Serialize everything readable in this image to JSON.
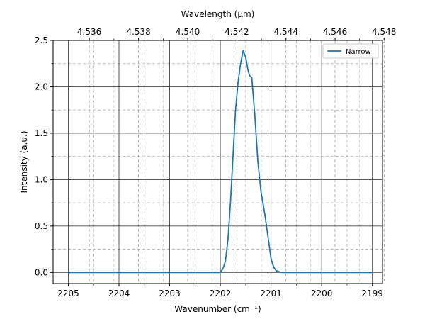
{
  "chart_data": {
    "type": "line",
    "xlabel": "Wavenumber (cm⁻¹)",
    "ylabel": "Intensity (a.u.)",
    "secondary_xlabel": "Wavelength (µm)",
    "xlim": [
      2205.3,
      2198.8
    ],
    "ylim": [
      -0.12,
      2.5
    ],
    "x_inverted": true,
    "x_ticks": [
      2205,
      2204,
      2203,
      2202,
      2201,
      2200,
      2199
    ],
    "x_tick_labels": [
      "2205",
      "2204",
      "2203",
      "2202",
      "2201",
      "2200",
      "2199"
    ],
    "y_ticks": [
      0.0,
      0.5,
      1.0,
      1.5,
      2.0,
      2.5
    ],
    "y_tick_labels": [
      "0.0",
      "0.5",
      "1.0",
      "1.5",
      "2.0",
      "2.5"
    ],
    "secondary_x_ticks": [
      4.536,
      4.538,
      4.54,
      4.542,
      4.544,
      4.546,
      4.548
    ],
    "secondary_x_tick_labels": [
      "4.536",
      "4.538",
      "4.540",
      "4.542",
      "4.544",
      "4.546",
      "4.548"
    ],
    "grid": true,
    "minor_grid": true,
    "legend_position": "top-right",
    "series": [
      {
        "name": "Narrow",
        "color": "#1f77b4",
        "x": [
          2205.0,
          2202.2,
          2202.0,
          2201.95,
          2201.9,
          2201.85,
          2201.8,
          2201.75,
          2201.7,
          2201.65,
          2201.6,
          2201.55,
          2201.5,
          2201.45,
          2201.42,
          2201.38,
          2201.32,
          2201.26,
          2201.2,
          2201.12,
          2201.05,
          2201.0,
          2200.95,
          2200.9,
          2200.8,
          2200.5,
          2199.0
        ],
        "y": [
          0.0,
          0.0,
          0.0,
          0.04,
          0.12,
          0.35,
          0.75,
          1.25,
          1.75,
          2.05,
          2.25,
          2.39,
          2.32,
          2.17,
          2.12,
          2.1,
          1.7,
          1.2,
          0.88,
          0.62,
          0.35,
          0.15,
          0.06,
          0.02,
          0.0,
          0.0,
          0.0
        ]
      }
    ]
  }
}
